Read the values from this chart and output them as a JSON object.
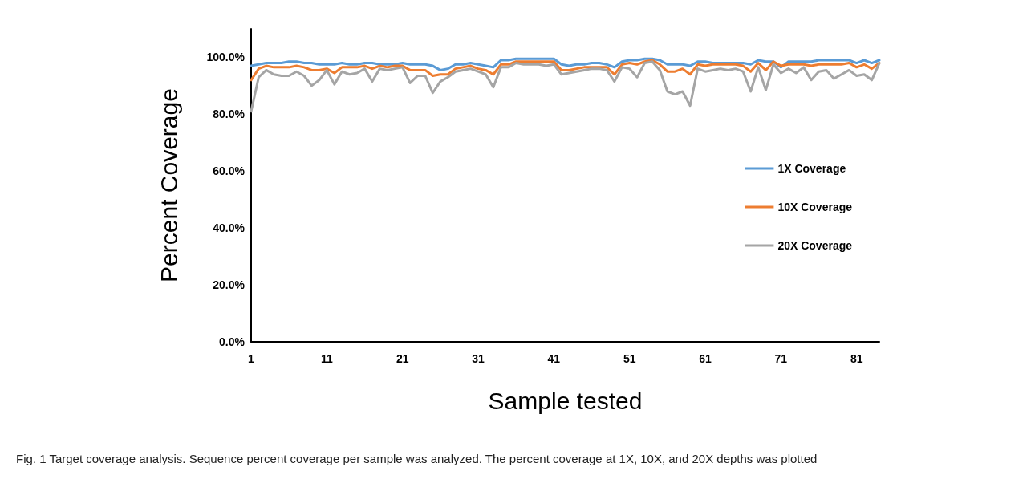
{
  "chart_data": {
    "type": "line",
    "xlabel": "Sample tested",
    "ylabel": "Percent Coverage",
    "annotations": [
      "Fig. 1 Target coverage analysis. Sequence percent coverage per sample was analyzed. The percent coverage at 1X, 10X, and 20X depths was plotted"
    ],
    "categories": [
      "1",
      null,
      null,
      null,
      null,
      null,
      null,
      null,
      null,
      null,
      "11",
      null,
      null,
      null,
      null,
      null,
      null,
      null,
      null,
      null,
      "21",
      null,
      null,
      null,
      null,
      null,
      null,
      null,
      null,
      null,
      "31",
      null,
      null,
      null,
      null,
      null,
      null,
      null,
      null,
      null,
      "41",
      null,
      null,
      null,
      null,
      null,
      null,
      null,
      null,
      null,
      "51",
      null,
      null,
      null,
      null,
      null,
      null,
      null,
      null,
      null,
      "61",
      null,
      null,
      null,
      null,
      null,
      null,
      null,
      null,
      null,
      "71",
      null,
      null,
      null,
      null,
      null,
      null,
      null,
      null,
      null,
      "81",
      null,
      null,
      null
    ],
    "series": [
      {
        "name": "1X Coverage",
        "color": "#5b9bd5",
        "values": [
          97,
          97.5,
          98,
          98,
          98,
          98.5,
          98.5,
          98,
          98,
          97.5,
          97.5,
          97.5,
          98,
          97.5,
          97.5,
          98,
          98,
          97.5,
          97.5,
          97.5,
          98,
          97.5,
          97.5,
          97.5,
          97,
          95.5,
          96,
          97.5,
          97.5,
          98,
          97.5,
          97,
          96.5,
          99,
          99,
          99.5,
          99.5,
          99.5,
          99.5,
          99.5,
          99.5,
          97.5,
          97,
          97.5,
          97.5,
          98,
          98,
          97.5,
          96.5,
          98.5,
          99,
          99,
          99.5,
          99.5,
          99,
          97.5,
          97.5,
          97.5,
          97,
          98.5,
          98.5,
          98,
          98,
          98,
          98,
          98,
          97.5,
          99,
          98.5,
          98.5,
          96.5,
          98.5,
          98.5,
          98.5,
          98.5,
          99,
          99,
          99,
          99,
          99,
          98,
          99,
          98,
          99
        ]
      },
      {
        "name": "10X Coverage",
        "color": "#ed7d31",
        "values": [
          92,
          96,
          97,
          96.5,
          96.5,
          96.5,
          97,
          96.5,
          95.5,
          95.5,
          96,
          94.5,
          96.5,
          96.5,
          96.5,
          97,
          96,
          97,
          96.5,
          97,
          97,
          95.5,
          95.5,
          95.5,
          93.5,
          94,
          94,
          96,
          96.5,
          97,
          96,
          95.5,
          94,
          97.5,
          97.5,
          98.5,
          98.5,
          98.5,
          98.5,
          98.5,
          98.5,
          95.5,
          95.5,
          96,
          96.5,
          96.5,
          96.5,
          96.5,
          94,
          97.5,
          98,
          97.5,
          98.5,
          99,
          97.5,
          95,
          95,
          96,
          94,
          97.5,
          97,
          97.5,
          97.5,
          97.5,
          97.5,
          97,
          95,
          98,
          95.5,
          98.5,
          97,
          97.5,
          97.5,
          97.5,
          97,
          97.5,
          97.5,
          97.5,
          97.5,
          98,
          96.5,
          97.5,
          96,
          98
        ]
      },
      {
        "name": "20X Coverage",
        "color": "#a5a5a5",
        "values": [
          81,
          93,
          95.5,
          94,
          93.5,
          93.5,
          95,
          93.5,
          90,
          92,
          95.5,
          90.5,
          95,
          94,
          94.5,
          96,
          91.5,
          96,
          95.5,
          96,
          96.5,
          91,
          93.5,
          93.5,
          87.5,
          91.5,
          93,
          95,
          95.5,
          96,
          95,
          94,
          89.5,
          96.5,
          96.5,
          98,
          97.5,
          97.5,
          97.5,
          97,
          97.5,
          94,
          94.5,
          95,
          95.5,
          96,
          96,
          95.5,
          91.5,
          96.5,
          96,
          93,
          98,
          98.5,
          95.5,
          88,
          87,
          88,
          83,
          96,
          95,
          95.5,
          96,
          95.5,
          96,
          95,
          88,
          96.5,
          88.5,
          97.5,
          94.5,
          96,
          94.5,
          96.5,
          92,
          95,
          95.5,
          92.5,
          94,
          95.5,
          93.5,
          94,
          92,
          98
        ]
      }
    ],
    "ylim": [
      0,
      110
    ],
    "yticks": [
      {
        "value": 0,
        "label": "0.0%"
      },
      {
        "value": 20,
        "label": "20.0%"
      },
      {
        "value": 40,
        "label": "40.0%"
      },
      {
        "value": 60,
        "label": "60.0%"
      },
      {
        "value": 80,
        "label": "80.0%"
      },
      {
        "value": 100,
        "label": "100.0%"
      }
    ],
    "grid": false,
    "legend": "right",
    "marker": "none",
    "line_style": "solid"
  }
}
